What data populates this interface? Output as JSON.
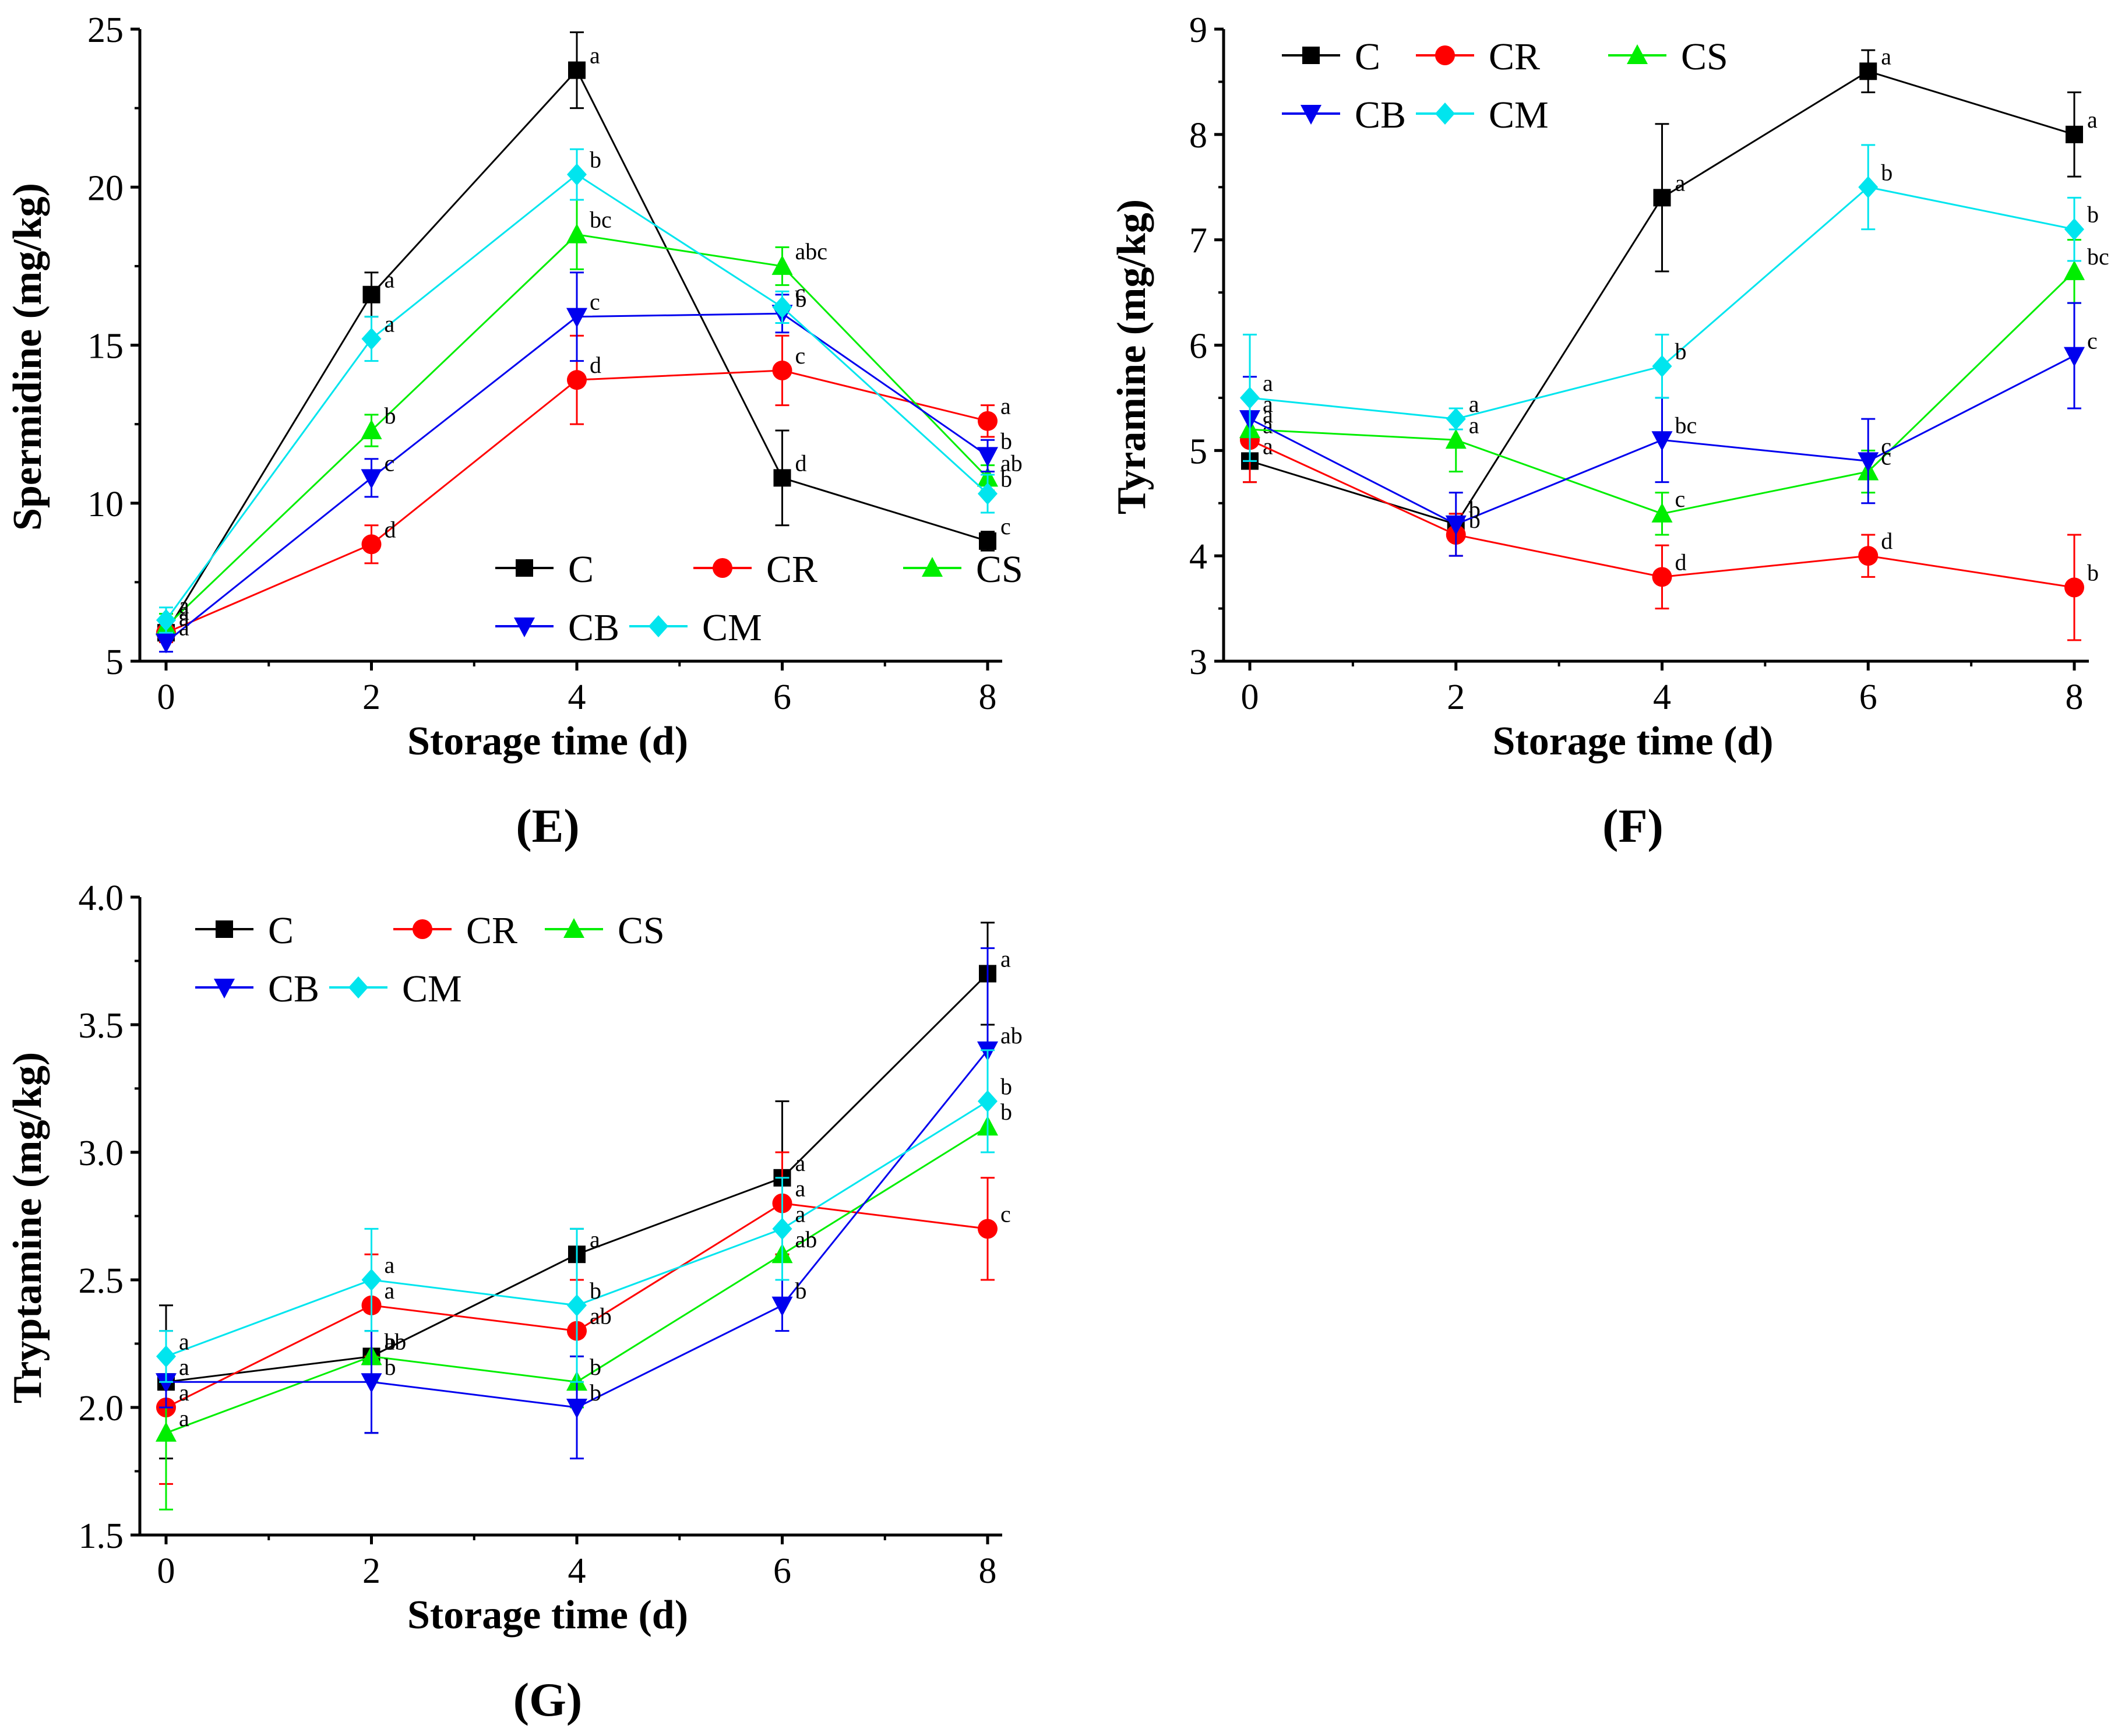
{
  "series_meta": [
    {
      "name": "C",
      "color": "#000000",
      "marker": "square"
    },
    {
      "name": "CR",
      "color": "#ff0000",
      "marker": "circle"
    },
    {
      "name": "CS",
      "color": "#00ee00",
      "marker": "triangle-up"
    },
    {
      "name": "CB",
      "color": "#0000ee",
      "marker": "triangle-down"
    },
    {
      "name": "CM",
      "color": "#00e5ee",
      "marker": "diamond"
    }
  ],
  "chart_data": [
    {
      "id": "E",
      "type": "line",
      "panel_label": "(E)",
      "xlabel": "Storage time (d)",
      "ylabel": "Spermidine (mg/kg)",
      "x": [
        0,
        2,
        4,
        6,
        8
      ],
      "xticks": [
        "0",
        "2",
        "4",
        "6",
        "8"
      ],
      "ylim": [
        5,
        25
      ],
      "yticks": [
        "5",
        "10",
        "15",
        "20",
        "25"
      ],
      "legend_position": "lower-right",
      "series": [
        {
          "name": "C",
          "values": [
            5.9,
            16.6,
            23.7,
            10.8,
            8.8
          ],
          "errors": [
            0.3,
            0.7,
            1.2,
            1.5,
            0.3
          ],
          "labels": [
            "a",
            "a",
            "a",
            "d",
            "c"
          ]
        },
        {
          "name": "CR",
          "values": [
            5.9,
            8.7,
            13.9,
            14.2,
            12.6
          ],
          "errors": [
            0.3,
            0.6,
            1.4,
            1.1,
            0.5
          ],
          "labels": [
            "a",
            "d",
            "d",
            "c",
            "a"
          ]
        },
        {
          "name": "CS",
          "values": [
            6.1,
            12.3,
            18.5,
            17.5,
            10.8
          ],
          "errors": [
            0.4,
            0.5,
            1.1,
            0.6,
            0.4
          ],
          "labels": [
            "a",
            "b",
            "bc",
            "abc",
            "ab"
          ]
        },
        {
          "name": "CB",
          "values": [
            5.6,
            10.8,
            15.9,
            16.0,
            11.5
          ],
          "errors": [
            0.3,
            0.6,
            1.4,
            0.6,
            0.5
          ],
          "labels": [
            "a",
            "c",
            "c",
            "b",
            "b"
          ]
        },
        {
          "name": "CM",
          "values": [
            6.3,
            15.2,
            20.4,
            16.2,
            10.3
          ],
          "errors": [
            0.4,
            0.7,
            0.8,
            0.5,
            0.6
          ],
          "labels": [
            "a",
            "a",
            "b",
            "c",
            "b"
          ]
        }
      ]
    },
    {
      "id": "F",
      "type": "line",
      "panel_label": "(F)",
      "xlabel": "Storage time (d)",
      "ylabel": "Tyramine (mg/kg)",
      "x": [
        0,
        2,
        4,
        6,
        8
      ],
      "xticks": [
        "0",
        "2",
        "4",
        "6",
        "8"
      ],
      "ylim": [
        3,
        9
      ],
      "yticks": [
        "3",
        "4",
        "5",
        "6",
        "7",
        "8",
        "9"
      ],
      "legend_position": "top-left",
      "series": [
        {
          "name": "C",
          "values": [
            4.9,
            4.3,
            7.4,
            8.6,
            8.0
          ],
          "errors": [
            0.2,
            0.1,
            0.7,
            0.2,
            0.4
          ],
          "labels": [
            "a",
            "b",
            "a",
            "a",
            "a"
          ]
        },
        {
          "name": "CR",
          "values": [
            5.1,
            4.2,
            3.8,
            4.0,
            3.7
          ],
          "errors": [
            0.4,
            0.2,
            0.3,
            0.2,
            0.5
          ],
          "labels": [
            "a",
            "b",
            "d",
            "d",
            "b"
          ]
        },
        {
          "name": "CS",
          "values": [
            5.2,
            5.1,
            4.4,
            4.8,
            6.7
          ],
          "errors": [
            0.3,
            0.3,
            0.2,
            0.2,
            0.3
          ],
          "labels": [
            "a",
            "a",
            "c",
            "c",
            "bc"
          ]
        },
        {
          "name": "CB",
          "values": [
            5.3,
            4.3,
            5.1,
            4.9,
            5.9
          ],
          "errors": [
            0.4,
            0.3,
            0.4,
            0.4,
            0.5
          ],
          "labels": [
            "a",
            "b",
            "bc",
            "c",
            "c"
          ]
        },
        {
          "name": "CM",
          "values": [
            5.5,
            5.3,
            5.8,
            7.5,
            7.1
          ],
          "errors": [
            0.6,
            0.1,
            0.3,
            0.4,
            0.3
          ],
          "labels": [
            "a",
            "a",
            "b",
            "b",
            "b"
          ]
        }
      ]
    },
    {
      "id": "G",
      "type": "line",
      "panel_label": "(G)",
      "xlabel": "Storage time (d)",
      "ylabel": "Tryptamine (mg/kg)",
      "x": [
        0,
        2,
        4,
        6,
        8
      ],
      "xticks": [
        "0",
        "2",
        "4",
        "6",
        "8"
      ],
      "ylim": [
        1.5,
        4.0
      ],
      "yticks": [
        "1.5",
        "2.0",
        "2.5",
        "3.0",
        "3.5",
        "4.0"
      ],
      "legend_position": "top-left",
      "series": [
        {
          "name": "C",
          "values": [
            2.1,
            2.2,
            2.6,
            2.9,
            3.7
          ],
          "errors": [
            0.3,
            0.3,
            0.1,
            0.3,
            0.2
          ],
          "labels": [
            "a",
            "ab",
            "a",
            "a",
            "a"
          ]
        },
        {
          "name": "CR",
          "values": [
            2.0,
            2.4,
            2.3,
            2.8,
            2.7
          ],
          "errors": [
            0.3,
            0.2,
            0.2,
            0.2,
            0.2
          ],
          "labels": [
            "a",
            "a",
            "ab",
            "a",
            "c"
          ]
        },
        {
          "name": "CS",
          "values": [
            1.9,
            2.2,
            2.1,
            2.6,
            3.1
          ],
          "errors": [
            0.3,
            0.1,
            0.1,
            0.1,
            0.1
          ],
          "labels": [
            "a",
            "b",
            "b",
            "ab",
            "b"
          ]
        },
        {
          "name": "CB",
          "values": [
            2.1,
            2.1,
            2.0,
            2.4,
            3.4
          ],
          "errors": [
            0.1,
            0.2,
            0.2,
            0.1,
            0.4
          ],
          "labels": [
            "a",
            "b",
            "b",
            "b",
            "ab"
          ]
        },
        {
          "name": "CM",
          "values": [
            2.2,
            2.5,
            2.4,
            2.7,
            3.2
          ],
          "errors": [
            0.1,
            0.2,
            0.3,
            0.2,
            0.2
          ],
          "labels": [
            "a",
            "a",
            "b",
            "a",
            "b"
          ]
        }
      ]
    }
  ]
}
